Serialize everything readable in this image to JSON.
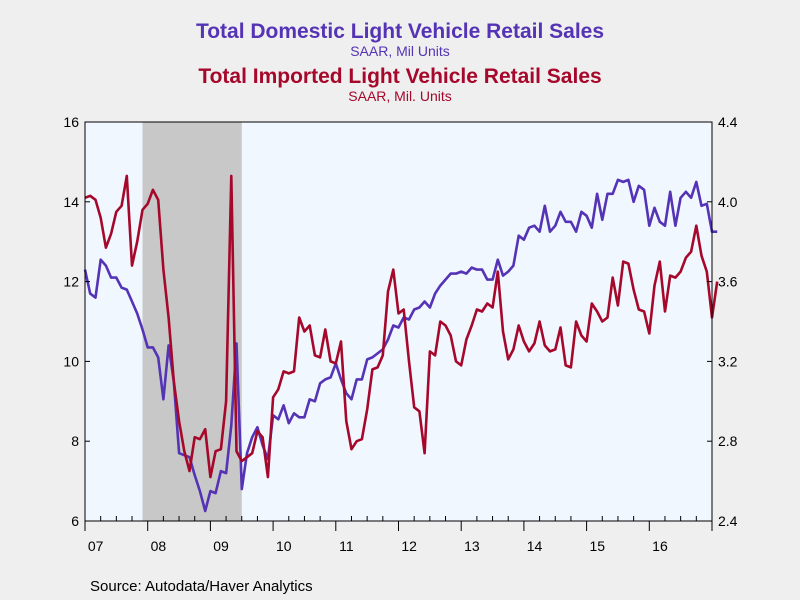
{
  "titles": {
    "domestic_title": "Total Domestic Light Vehicle Retail Sales",
    "domestic_subtitle": "SAAR, Mil Units",
    "imported_title": "Total Imported Light Vehicle Retail Sales",
    "imported_subtitle": "SAAR, Mil. Units"
  },
  "source": "Source:  Autodata/Haver Analytics",
  "colors": {
    "domestic": "#5533b5",
    "imported": "#a5082b",
    "plot_bg": "#f0f7ff",
    "recession": "#c8c8c8"
  },
  "chart_data": {
    "type": "line",
    "x_range": [
      2007.0,
      2017.0
    ],
    "x_tick_labels": [
      "07",
      "08",
      "09",
      "10",
      "11",
      "12",
      "13",
      "14",
      "15",
      "16"
    ],
    "left_axis": {
      "ylim": [
        6,
        16
      ],
      "ticks": [
        "16",
        "14",
        "12",
        "10",
        "8",
        "6"
      ]
    },
    "right_axis": {
      "ylim": [
        2.4,
        4.4
      ],
      "ticks": [
        "4.4",
        "4.0",
        "3.6",
        "3.2",
        "2.8",
        "2.4"
      ]
    },
    "grid": false,
    "shaded_regions": [
      {
        "start": 2007.917,
        "end": 2009.5,
        "label": "recession"
      }
    ],
    "series": [
      {
        "axis": "left",
        "start": 2007.0,
        "step_months": 1,
        "values": [
          12.3,
          11.7,
          11.6,
          12.55,
          12.4,
          12.1,
          12.1,
          11.85,
          11.8,
          11.5,
          11.2,
          10.8,
          10.35,
          10.35,
          10.1,
          9.05,
          10.4,
          9.5,
          7.7,
          7.65,
          7.6,
          7.15,
          6.75,
          6.25,
          6.75,
          6.7,
          7.25,
          7.2,
          8.4,
          10.45,
          6.8,
          7.7,
          8.1,
          8.35,
          7.9,
          7.55,
          8.65,
          8.55,
          8.9,
          8.45,
          8.7,
          8.6,
          8.6,
          9.05,
          9.0,
          9.45,
          9.55,
          9.6,
          9.95,
          9.55,
          9.2,
          9.05,
          9.55,
          9.55,
          10.05,
          10.1,
          10.2,
          10.3,
          10.55,
          10.9,
          10.85,
          11.1,
          11.05,
          11.3,
          11.35,
          11.5,
          11.35,
          11.7,
          11.9,
          12.05,
          12.2,
          12.2,
          12.25,
          12.2,
          12.35,
          12.3,
          12.3,
          12.05,
          12.05,
          12.55,
          12.15,
          12.25,
          12.4,
          13.15,
          13.05,
          13.35,
          13.4,
          13.25,
          13.9,
          13.25,
          13.4,
          13.75,
          13.5,
          13.5,
          13.25,
          13.75,
          13.65,
          13.35,
          14.2,
          13.55,
          14.2,
          14.2,
          14.55,
          14.5,
          14.55,
          14.0,
          14.4,
          14.3,
          13.4,
          13.85,
          13.5,
          13.4,
          14.25,
          13.4,
          14.1,
          14.25,
          14.1,
          14.5,
          13.9,
          13.95,
          13.25,
          13.25
        ]
      },
      {
        "axis": "right",
        "start": 2007.0,
        "step_months": 1,
        "values": [
          4.02,
          4.03,
          4.01,
          3.92,
          3.77,
          3.84,
          3.95,
          3.98,
          4.13,
          3.68,
          3.8,
          3.96,
          3.99,
          4.06,
          4.01,
          3.66,
          3.42,
          3.1,
          2.9,
          2.75,
          2.65,
          2.82,
          2.81,
          2.86,
          2.62,
          2.75,
          2.76,
          3.0,
          4.13,
          2.75,
          2.7,
          2.72,
          2.74,
          2.85,
          2.82,
          2.62,
          3.02,
          3.06,
          3.15,
          3.14,
          3.15,
          3.42,
          3.35,
          3.38,
          3.23,
          3.22,
          3.36,
          3.2,
          3.19,
          3.3,
          2.9,
          2.76,
          2.8,
          2.81,
          2.96,
          3.16,
          3.17,
          3.23,
          3.55,
          3.66,
          3.44,
          3.46,
          3.2,
          2.97,
          2.95,
          2.74,
          3.25,
          3.23,
          3.4,
          3.38,
          3.33,
          3.2,
          3.18,
          3.31,
          3.38,
          3.46,
          3.45,
          3.49,
          3.47,
          3.65,
          3.35,
          3.21,
          3.26,
          3.38,
          3.3,
          3.25,
          3.29,
          3.4,
          3.28,
          3.25,
          3.26,
          3.37,
          3.18,
          3.17,
          3.4,
          3.33,
          3.3,
          3.49,
          3.45,
          3.4,
          3.42,
          3.62,
          3.48,
          3.7,
          3.69,
          3.56,
          3.46,
          3.45,
          3.34,
          3.58,
          3.7,
          3.45,
          3.63,
          3.62,
          3.65,
          3.72,
          3.75,
          3.88,
          3.73,
          3.65,
          3.42,
          3.6
        ]
      }
    ]
  }
}
